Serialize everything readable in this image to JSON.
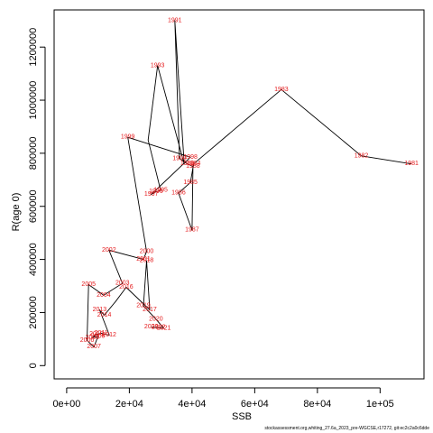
{
  "chart_data": {
    "type": "line",
    "xlabel": "SSB",
    "ylabel": "R(age 0)",
    "xlim": [
      -4000,
      114000
    ],
    "ylim": [
      -50000,
      1340000
    ],
    "x_ticks": [
      0,
      20000,
      40000,
      60000,
      80000,
      100000
    ],
    "x_tick_labels": [
      "0e+00",
      "2e+04",
      "4e+04",
      "6e+04",
      "8e+04",
      "1e+05"
    ],
    "y_ticks": [
      0,
      200000,
      400000,
      600000,
      800000,
      1000000,
      1200000
    ],
    "y_tick_labels": [
      "0",
      "200000",
      "400000",
      "600000",
      "800000",
      "1000000",
      "1200000"
    ],
    "line_color": "#000000",
    "label_color": "#e41a1c",
    "points": [
      {
        "year": "1981",
        "x": 110000,
        "y": 760000
      },
      {
        "year": "1982",
        "x": 94000,
        "y": 790000
      },
      {
        "year": "1983",
        "x": 68500,
        "y": 1040000
      },
      {
        "year": "1984",
        "x": 40500,
        "y": 760000
      },
      {
        "year": "1985",
        "x": 39500,
        "y": 690000
      },
      {
        "year": "1986",
        "x": 35700,
        "y": 650000
      },
      {
        "year": "1987",
        "x": 40000,
        "y": 510000
      },
      {
        "year": "1988",
        "x": 40300,
        "y": 750000
      },
      {
        "year": "1989",
        "x": 38500,
        "y": 760000
      },
      {
        "year": "1990",
        "x": 36000,
        "y": 780000
      },
      {
        "year": "1991",
        "x": 34500,
        "y": 1300000
      },
      {
        "year": "1992",
        "x": 37500,
        "y": 760000
      },
      {
        "year": "1993",
        "x": 29000,
        "y": 1130000
      },
      {
        "year": "1994",
        "x": 26000,
        "y": 850000
      },
      {
        "year": "1995",
        "x": 30000,
        "y": 660000
      },
      {
        "year": "1996",
        "x": 28500,
        "y": 655000
      },
      {
        "year": "1997",
        "x": 27000,
        "y": 645000
      },
      {
        "year": "1998",
        "x": 39500,
        "y": 785000
      },
      {
        "year": "1999",
        "x": 19500,
        "y": 860000
      },
      {
        "year": "2000",
        "x": 25500,
        "y": 430000
      },
      {
        "year": "2001",
        "x": 24500,
        "y": 400000
      },
      {
        "year": "2002",
        "x": 13500,
        "y": 435000
      },
      {
        "year": "2003",
        "x": 17800,
        "y": 310000
      },
      {
        "year": "2004",
        "x": 11800,
        "y": 265000
      },
      {
        "year": "2005",
        "x": 7000,
        "y": 305000
      },
      {
        "year": "2006",
        "x": 6500,
        "y": 95000
      },
      {
        "year": "2007",
        "x": 8700,
        "y": 70000
      },
      {
        "year": "2008",
        "x": 10000,
        "y": 110000
      },
      {
        "year": "2009",
        "x": 8200,
        "y": 105000
      },
      {
        "year": "2010",
        "x": 9500,
        "y": 118000
      },
      {
        "year": "2011",
        "x": 11000,
        "y": 122000
      },
      {
        "year": "2012",
        "x": 13600,
        "y": 115000
      },
      {
        "year": "2013",
        "x": 10500,
        "y": 210000
      },
      {
        "year": "2014",
        "x": 12000,
        "y": 190000
      },
      {
        "year": "2015",
        "x": 15500,
        "y": 240000
      },
      {
        "year": "2016",
        "x": 19000,
        "y": 295000
      },
      {
        "year": "2017",
        "x": 26500,
        "y": 210000
      },
      {
        "year": "2018",
        "x": 25500,
        "y": 395000
      },
      {
        "year": "2019",
        "x": 24500,
        "y": 225000
      },
      {
        "year": "2020",
        "x": 28500,
        "y": 175000
      },
      {
        "year": "2021",
        "x": 31000,
        "y": 140000
      },
      {
        "year": "2022",
        "x": 29300,
        "y": 143000
      },
      {
        "year": "2023",
        "x": 27000,
        "y": 145000
      }
    ],
    "label_order": [
      "1986",
      "1991",
      "1993",
      "1983",
      "1989",
      "1990",
      "1984",
      "1999",
      "1998",
      "1982",
      "1981",
      "1988",
      "1985",
      "1995",
      "1996",
      "1997",
      "1987",
      "2019",
      "2014",
      "2018",
      "2000",
      "2003",
      "2002",
      "2016",
      "2013",
      "2010",
      "2017",
      "2009",
      "2001",
      "2020",
      "2023",
      "2022",
      "2021",
      "2011",
      "2012",
      "2005",
      "2004",
      "2006",
      "2008",
      "2007"
    ]
  },
  "footer": "stockassessment.org,whiting_27.6a_2023_pre-WGCSE,r17272, git:ec2c2a0c6dde"
}
